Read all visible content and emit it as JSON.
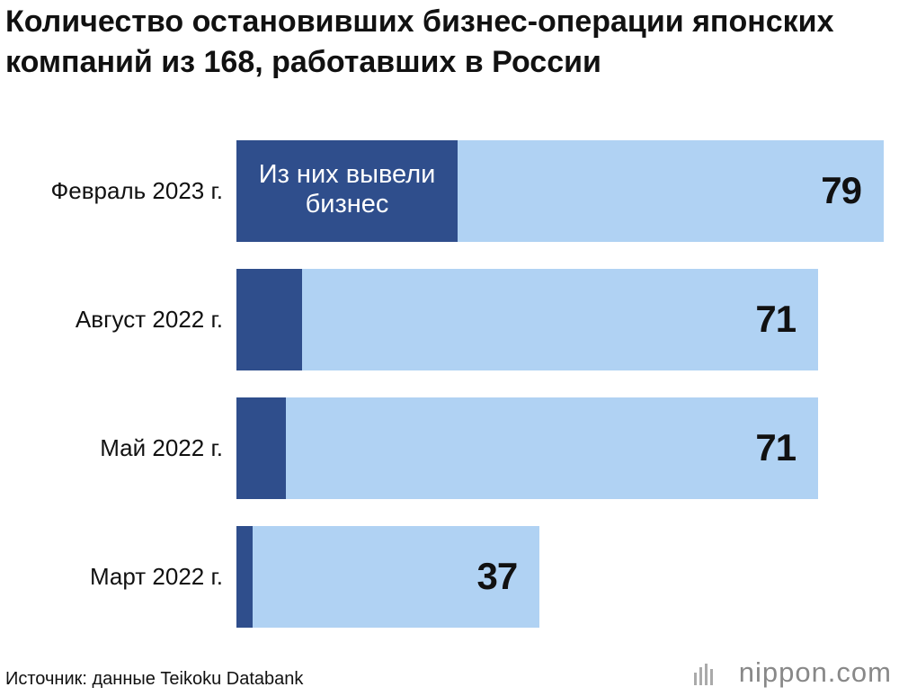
{
  "chart_data": {
    "type": "bar",
    "title": "Количество остановивших бизнес-операции японских компаний из 168, работавших в России",
    "categories": [
      "Февраль 2023 г.",
      "Август 2022 г.",
      "Май 2022 г.",
      "Март 2022 г."
    ],
    "values": [
      79,
      71,
      71,
      37
    ],
    "color": "#b0d2f3",
    "subset": {
      "name": "Из них вывели бизнес",
      "color": "#2f4e8c",
      "values": [
        27,
        8,
        6,
        2
      ]
    },
    "source": "Источник: данные Teikoku Databank",
    "brand": "nippon.com"
  }
}
